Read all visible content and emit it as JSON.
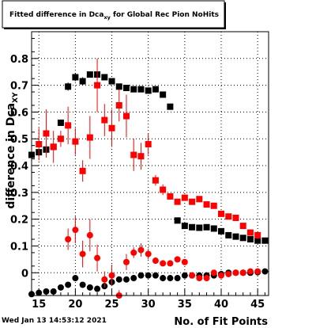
{
  "chart_data": {
    "type": "scatter",
    "title_main": "Fitted difference in Dca",
    "title_sub": "xy",
    "title_rest": " for Global Rec Pion NoHits",
    "ylabel_main": "difference in Dca",
    "ylabel_sub": "XY",
    "xlabel": "No. of Fit Points",
    "xlim": [
      14,
      46.5
    ],
    "ylim": [
      -0.085,
      0.9
    ],
    "grid": true,
    "x_ticks": [
      15,
      20,
      25,
      30,
      35,
      40,
      45
    ],
    "y_ticks": [
      0,
      0.1,
      0.2,
      0.3,
      0.4,
      0.5,
      0.6,
      0.7,
      0.8
    ],
    "y_tick_labels": [
      "0",
      "0.1",
      "0.2",
      "0.3",
      "0.4",
      "0.5",
      "0.6",
      "0.7",
      "0.8"
    ],
    "series": [
      {
        "marker": "square",
        "color": "#000000",
        "x": [
          14,
          15,
          16,
          17,
          18,
          19,
          20,
          21,
          22,
          23,
          24,
          25,
          26,
          27,
          28,
          29,
          30,
          31,
          32,
          33,
          34,
          35,
          36,
          37,
          38,
          39,
          40,
          41,
          42,
          43,
          44,
          45,
          46
        ],
        "y": [
          0.44,
          0.45,
          0.46,
          0.47,
          0.56,
          0.695,
          0.73,
          0.715,
          0.74,
          0.74,
          0.73,
          0.715,
          0.695,
          0.69,
          0.685,
          0.685,
          0.68,
          0.685,
          0.665,
          0.62,
          0.195,
          0.175,
          0.17,
          0.168,
          0.17,
          0.165,
          0.155,
          0.14,
          0.135,
          0.13,
          0.125,
          0.12,
          0.12
        ],
        "err": [
          0.01,
          0.01,
          0.01,
          0.01,
          0.012,
          0.015,
          0.015,
          0.015,
          0.01,
          0.01,
          0.01,
          0.008,
          0.005,
          0.005,
          0.005,
          0.005,
          0.005,
          0.005,
          0.005,
          0.005,
          0.005,
          0.005,
          0.005,
          0.005,
          0.005,
          0.005,
          0.005,
          0.005,
          0.005,
          0.005,
          0.005,
          0.005,
          0.005
        ]
      },
      {
        "marker": "square",
        "color": "#ff0000",
        "x": [
          15,
          16,
          17,
          18,
          19,
          20,
          21,
          22,
          23,
          24,
          25,
          26,
          27,
          28,
          29,
          30,
          31,
          32,
          33,
          34,
          35,
          36,
          37,
          38,
          39,
          40,
          41,
          42,
          43,
          44,
          45
        ],
        "y": [
          0.48,
          0.52,
          0.47,
          0.5,
          0.55,
          0.49,
          0.38,
          0.505,
          0.7,
          0.57,
          0.54,
          0.625,
          0.585,
          0.44,
          0.435,
          0.48,
          0.345,
          0.31,
          0.285,
          0.265,
          0.28,
          0.265,
          0.275,
          0.255,
          0.25,
          0.22,
          0.21,
          0.205,
          0.175,
          0.15,
          0.14
        ],
        "err": [
          0.06,
          0.09,
          0.06,
          0.03,
          0.07,
          0.05,
          0.04,
          0.08,
          0.1,
          0.06,
          0.07,
          0.06,
          0.08,
          0.06,
          0.05,
          0.04,
          0.02,
          0.02,
          0.01,
          0.01,
          0.01,
          0.01,
          0.01,
          0.01,
          0.01,
          0.01,
          0.01,
          0.01,
          0.01,
          0.01,
          0.01
        ]
      },
      {
        "marker": "circle",
        "color": "#000000",
        "x": [
          14,
          15,
          16,
          17,
          18,
          19,
          20,
          21,
          22,
          23,
          24,
          25,
          26,
          27,
          28,
          29,
          30,
          31,
          32,
          33,
          34,
          35,
          36,
          37,
          38,
          39,
          40,
          41,
          42,
          43,
          44,
          45,
          46
        ],
        "y": [
          -0.08,
          -0.075,
          -0.07,
          -0.07,
          -0.055,
          -0.045,
          -0.02,
          -0.045,
          -0.055,
          -0.06,
          -0.05,
          -0.035,
          -0.025,
          -0.025,
          -0.02,
          -0.01,
          -0.01,
          -0.01,
          -0.02,
          -0.02,
          -0.02,
          -0.01,
          -0.01,
          -0.01,
          -0.01,
          -0.01,
          -0.005,
          0,
          0,
          0,
          0,
          0.002,
          0.005
        ],
        "err": [
          0.003,
          0.003,
          0.003,
          0.003,
          0.003,
          0.003,
          0.003,
          0.003,
          0.003,
          0.003,
          0.003,
          0.003,
          0.003,
          0.003,
          0.003,
          0.003,
          0.003,
          0.003,
          0.003,
          0.003,
          0.003,
          0.003,
          0.003,
          0.003,
          0.003,
          0.003,
          0.003,
          0.003,
          0.003,
          0.003,
          0.003,
          0.003,
          0.003
        ]
      },
      {
        "marker": "circle",
        "color": "#ff0000",
        "x": [
          19,
          20,
          21,
          22,
          23,
          24,
          25,
          26,
          27,
          28,
          29,
          30,
          31,
          32,
          33,
          34,
          35,
          36,
          37,
          38,
          39,
          40,
          41,
          42,
          43,
          44,
          45
        ],
        "y": [
          0.125,
          0.16,
          0.07,
          0.14,
          0.055,
          -0.025,
          -0.01,
          -0.085,
          0.04,
          0.075,
          0.085,
          0.07,
          0.045,
          0.035,
          0.035,
          0.05,
          0.04,
          -0.01,
          -0.02,
          -0.02,
          0,
          -0.01,
          -0.005,
          0,
          0,
          0.005,
          0.005
        ],
        "err": [
          0.04,
          0.05,
          0.05,
          0.06,
          0.05,
          0.03,
          0.04,
          0.02,
          0.03,
          0.02,
          0.025,
          0.02,
          0.01,
          0.01,
          0.01,
          0.01,
          0.01,
          0.01,
          0.005,
          0.005,
          0.005,
          0.005,
          0.005,
          0.005,
          0.005,
          0.005,
          0.005
        ]
      }
    ]
  },
  "footer": {
    "timestamp": "Wed Jan 13 14:53:12 2021"
  }
}
